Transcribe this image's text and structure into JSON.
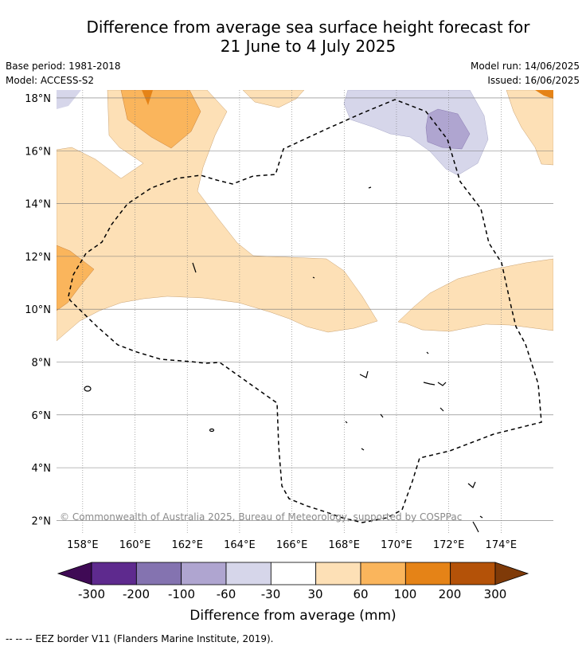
{
  "title": {
    "line1": "Difference from average sea surface height forecast for",
    "line2": "21 June to 4 July 2025"
  },
  "meta": {
    "base_period": "Base period: 1981-2018",
    "model": "Model: ACCESS-S2",
    "model_run": "Model run: 14/06/2025",
    "issued": "Issued: 16/06/2025"
  },
  "map": {
    "lon_range": [
      157,
      176
    ],
    "lat_range": [
      1.5,
      18.3
    ],
    "lon_ticks": [
      {
        "value": 158,
        "label": "158°E"
      },
      {
        "value": 160,
        "label": "160°E"
      },
      {
        "value": 162,
        "label": "162°E"
      },
      {
        "value": 164,
        "label": "164°E"
      },
      {
        "value": 166,
        "label": "166°E"
      },
      {
        "value": 168,
        "label": "168°E"
      },
      {
        "value": 170,
        "label": "170°E"
      },
      {
        "value": 172,
        "label": "172°E"
      },
      {
        "value": 174,
        "label": "174°E"
      }
    ],
    "lat_ticks": [
      {
        "value": 2,
        "label": "2°N"
      },
      {
        "value": 4,
        "label": "4°N"
      },
      {
        "value": 6,
        "label": "6°N"
      },
      {
        "value": 8,
        "label": "8°N"
      },
      {
        "value": 10,
        "label": "10°N"
      },
      {
        "value": 12,
        "label": "12°N"
      },
      {
        "value": 14,
        "label": "14°N"
      },
      {
        "value": 16,
        "label": "16°N"
      },
      {
        "value": 18,
        "label": "18°N"
      }
    ],
    "copyright": "© Commonwealth of Australia 2025, Bureau of Meteorology, supported by COSPPac"
  },
  "legend": {
    "title": "Difference from average (mm)",
    "tick_labels": [
      "-300",
      "-200",
      "-100",
      "-60",
      "-30",
      "30",
      "60",
      "100",
      "200",
      "300"
    ],
    "colors": [
      "#3f0a55",
      "#5e2a8e",
      "#8473b0",
      "#afa5d0",
      "#d6d6ea",
      "#ffffff",
      "#fde0b6",
      "#fab55c",
      "#e58317",
      "#b45208",
      "#7f3a08"
    ]
  },
  "footer": {
    "eez_note": "--  --  -- EEZ border V11 (Flanders Marine Institute, 2019)."
  }
}
